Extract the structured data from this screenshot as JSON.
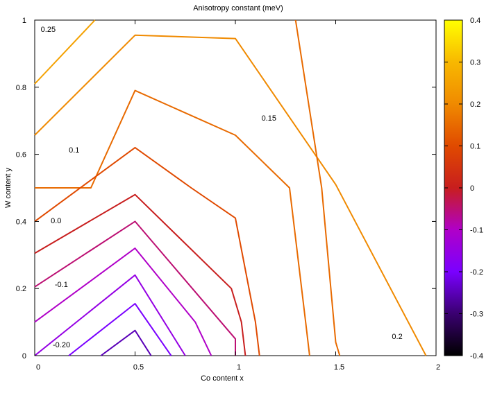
{
  "chart_data": {
    "type": "contour",
    "title": "Anisotropy constant (meV)",
    "xlabel": "Co content x",
    "ylabel": "W content y",
    "xlim": [
      0,
      2
    ],
    "ylim": [
      0,
      1
    ],
    "x_ticks": [
      {
        "value": 0,
        "label": "0"
      },
      {
        "value": 0.5,
        "label": "0.5"
      },
      {
        "value": 1,
        "label": "1"
      },
      {
        "value": 1.5,
        "label": "1.5"
      },
      {
        "value": 2,
        "label": "2"
      }
    ],
    "y_ticks": [
      {
        "value": 0,
        "label": "0"
      },
      {
        "value": 0.2,
        "label": "0.2"
      },
      {
        "value": 0.4,
        "label": "0.4"
      },
      {
        "value": 0.6,
        "label": "0.6"
      },
      {
        "value": 0.8,
        "label": "0.8"
      },
      {
        "value": 1,
        "label": "1"
      }
    ],
    "colorbar": {
      "range": [
        -0.4,
        0.4
      ],
      "ticks": [
        {
          "value": 0.4,
          "label": "0.4"
        },
        {
          "value": 0.3,
          "label": "0.3"
        },
        {
          "value": 0.2,
          "label": "0.2"
        },
        {
          "value": 0.1,
          "label": "0.1"
        },
        {
          "value": 0,
          "label": "0"
        },
        {
          "value": -0.1,
          "label": "-0.1"
        },
        {
          "value": -0.2,
          "label": "-0.2"
        },
        {
          "value": -0.3,
          "label": "-0.3"
        },
        {
          "value": -0.4,
          "label": "-0.4"
        }
      ],
      "stops": [
        {
          "value": -0.4,
          "color": "#000000"
        },
        {
          "value": -0.3,
          "color": "#3a0070"
        },
        {
          "value": -0.2,
          "color": "#7a00ff"
        },
        {
          "value": -0.1,
          "color": "#b000c8"
        },
        {
          "value": 0.0,
          "color": "#c81e1e"
        },
        {
          "value": 0.1,
          "color": "#e04a00"
        },
        {
          "value": 0.2,
          "color": "#f08a00"
        },
        {
          "value": 0.3,
          "color": "#f8b800"
        },
        {
          "value": 0.4,
          "color": "#ffff00"
        }
      ]
    },
    "contours": [
      {
        "level": 0.25,
        "points": [
          [
            0,
            0.81
          ],
          [
            0.3,
            1.0
          ]
        ]
      },
      {
        "level": 0.2,
        "points": [
          [
            0,
            0.657
          ],
          [
            0.5,
            0.955
          ],
          [
            1.0,
            0.945
          ],
          [
            1.5,
            0.51
          ],
          [
            1.95,
            0
          ]
        ]
      },
      {
        "level": 0.15,
        "points": [
          [
            1.3,
            1.0
          ],
          [
            1.43,
            0.5
          ],
          [
            1.5,
            0.04
          ],
          [
            1.52,
            0
          ]
        ]
      },
      {
        "level": 0.15,
        "points": [
          [
            0,
            0.5
          ],
          [
            0.28,
            0.5
          ],
          [
            0.5,
            0.79
          ],
          [
            1.0,
            0.657
          ],
          [
            1.27,
            0.5
          ],
          [
            1.35,
            0.1
          ],
          [
            1.37,
            0
          ]
        ]
      },
      {
        "level": 0.1,
        "points": [
          [
            0,
            0.4
          ],
          [
            0.5,
            0.62
          ],
          [
            0.78,
            0.5
          ],
          [
            1.0,
            0.41
          ],
          [
            1.1,
            0.1
          ],
          [
            1.12,
            0
          ]
        ]
      },
      {
        "level": 0.0,
        "points": [
          [
            0,
            0.305
          ],
          [
            0.5,
            0.48
          ],
          [
            0.98,
            0.2
          ],
          [
            1.03,
            0.1
          ],
          [
            1.05,
            0
          ]
        ]
      },
      {
        "level": -0.05,
        "points": [
          [
            0,
            0.205
          ],
          [
            0.5,
            0.4
          ],
          [
            1.0,
            0.05
          ],
          [
            1.0,
            0
          ]
        ]
      },
      {
        "level": -0.1,
        "points": [
          [
            0,
            0.1
          ],
          [
            0.5,
            0.32
          ],
          [
            0.8,
            0.1
          ],
          [
            0.88,
            0
          ]
        ]
      },
      {
        "level": -0.15,
        "points": [
          [
            0,
            0.0
          ],
          [
            0.5,
            0.24
          ],
          [
            0.75,
            0
          ]
        ]
      },
      {
        "level": -0.2,
        "points": [
          [
            0.17,
            0
          ],
          [
            0.5,
            0.155
          ],
          [
            0.68,
            0
          ]
        ]
      },
      {
        "level": -0.25,
        "points": [
          [
            0.33,
            0
          ],
          [
            0.5,
            0.075
          ],
          [
            0.58,
            0
          ]
        ]
      }
    ],
    "contour_labels": [
      {
        "text": "0.25",
        "x": 0.03,
        "y": 0.965
      },
      {
        "text": "0.15",
        "x": 1.13,
        "y": 0.7
      },
      {
        "text": "0.1",
        "x": 0.17,
        "y": 0.605
      },
      {
        "text": "0.0",
        "x": 0.08,
        "y": 0.395
      },
      {
        "text": "-0.1",
        "x": 0.1,
        "y": 0.205
      },
      {
        "text": "-0.20",
        "x": 0.09,
        "y": 0.025
      },
      {
        "text": "0.2",
        "x": 1.78,
        "y": 0.05
      }
    ]
  }
}
